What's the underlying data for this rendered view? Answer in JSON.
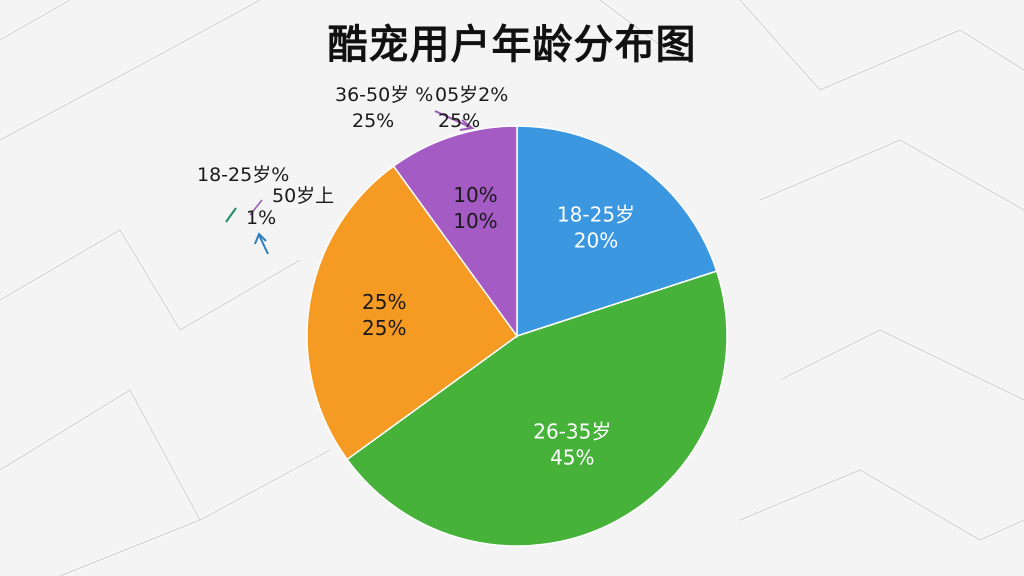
{
  "title": "酷宠用户年龄分布图",
  "chart_data": {
    "type": "pie",
    "title": "酷宠用户年龄分布图",
    "slices": [
      {
        "label": "18-25岁",
        "value": 20,
        "value_text": "20%",
        "color": "#3a97e0"
      },
      {
        "label": "26-35岁",
        "value": 45,
        "value_text": "45%",
        "color": "#46b23a"
      },
      {
        "label": "",
        "value": 25,
        "value_text": "25%",
        "value_text2": "25%",
        "color": "#f59a23"
      },
      {
        "label": "",
        "value": 10,
        "value_text": "10%",
        "value_text2": "10%",
        "color": "#a45bc4"
      }
    ],
    "outside_labels": {
      "top_left_1": "36-50岁 %",
      "top_left_2": "25%",
      "top_right_1": "05岁2%",
      "top_right_2": "25%",
      "left_1": "18-25岁%",
      "left_2": "50岁上",
      "left_3": "1%"
    },
    "legend": "none"
  }
}
